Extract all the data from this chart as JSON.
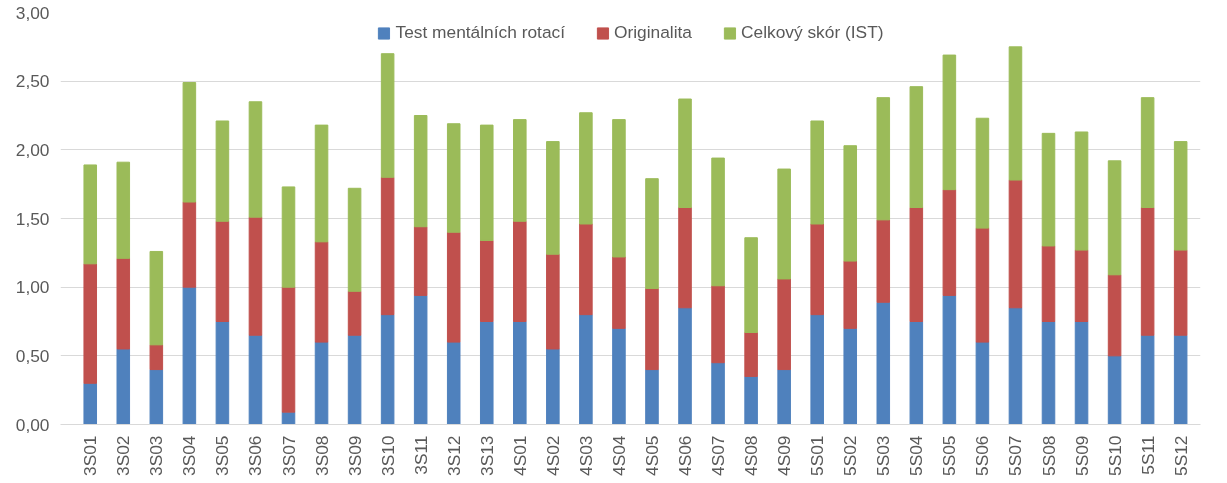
{
  "chart_data": {
    "type": "bar",
    "stacked": true,
    "categories": [
      "3S01",
      "3S02",
      "3S03",
      "3S04",
      "3S05",
      "3S06",
      "3S07",
      "3S08",
      "3S09",
      "3S10",
      "3S11",
      "3S12",
      "3S13",
      "4S01",
      "4S02",
      "4S03",
      "4S04",
      "4S05",
      "4S06",
      "4S07",
      "4S08",
      "4S09",
      "5S01",
      "5S02",
      "5S03",
      "5S04",
      "5S05",
      "5S06",
      "5S07",
      "5S08",
      "5S09",
      "5S10",
      "5S11",
      "5S12"
    ],
    "series": [
      {
        "name": "Test mentálních rotací",
        "color": "#4f81bd",
        "values": [
          0.3,
          0.55,
          0.4,
          1.0,
          0.75,
          0.65,
          0.09,
          0.6,
          0.65,
          0.8,
          0.94,
          0.6,
          0.75,
          0.75,
          0.55,
          0.8,
          0.7,
          0.4,
          0.85,
          0.45,
          0.35,
          0.4,
          0.8,
          0.7,
          0.89,
          0.75,
          0.94,
          0.6,
          0.85,
          0.75,
          0.75,
          0.5,
          0.65,
          0.65
        ]
      },
      {
        "name": "Originalita",
        "color": "#c0504d",
        "values": [
          0.87,
          0.66,
          0.18,
          0.62,
          0.73,
          0.86,
          0.91,
          0.73,
          0.32,
          1.0,
          0.5,
          0.8,
          0.59,
          0.73,
          0.69,
          0.66,
          0.52,
          0.59,
          0.73,
          0.56,
          0.32,
          0.66,
          0.66,
          0.49,
          0.6,
          0.83,
          0.77,
          0.83,
          0.93,
          0.55,
          0.52,
          0.59,
          0.93,
          0.62
        ]
      },
      {
        "name": "Celkový skór (IST)",
        "color": "#9bbb59",
        "values": [
          0.72,
          0.7,
          0.68,
          0.87,
          0.73,
          0.84,
          0.73,
          0.85,
          0.75,
          0.9,
          0.81,
          0.79,
          0.84,
          0.74,
          0.82,
          0.81,
          1.0,
          0.8,
          0.79,
          0.93,
          0.69,
          0.8,
          0.75,
          0.84,
          0.89,
          0.88,
          0.98,
          0.8,
          0.97,
          0.82,
          0.86,
          0.83,
          0.8,
          0.79
        ]
      }
    ],
    "ylim": [
      0,
      3
    ],
    "yticks": [
      {
        "value": 0,
        "label": "0,00"
      },
      {
        "value": 0.5,
        "label": "0,50"
      },
      {
        "value": 1,
        "label": "1,00"
      },
      {
        "value": 1.5,
        "label": "1,50"
      },
      {
        "value": 2,
        "label": "2,00"
      },
      {
        "value": 2.5,
        "label": "2,50"
      },
      {
        "value": 3,
        "label": "3,00"
      }
    ],
    "grid": "y",
    "legend": "top"
  }
}
